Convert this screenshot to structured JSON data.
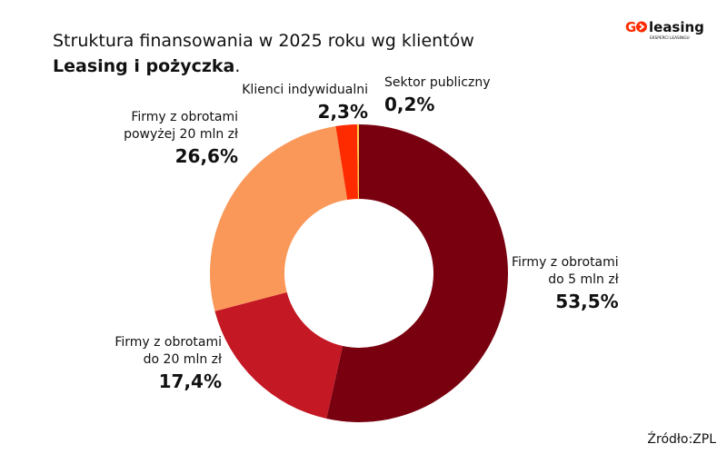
{
  "title": {
    "line1": "Struktura finansowania w 2025 roku wg klientów",
    "line2_bold": "Leasing i pożyczka",
    "line2_suffix": "."
  },
  "logo": {
    "text_go": "GO",
    "text_leasing": "leasing",
    "tagline": "EKSPERCI LEASINGU"
  },
  "source": "Źródło:ZPL",
  "chart_data": {
    "type": "pie",
    "donut": true,
    "categories": [
      "Firmy z obrotami do 5 mln zł",
      "Firmy z obrotami do 20 mln zł",
      "Firmy z obrotami powyżej 20 mln zł",
      "Klienci indywidualni",
      "Sektor publiczny"
    ],
    "values": [
      53.5,
      17.4,
      26.6,
      2.3,
      0.2
    ],
    "value_labels": [
      "53,5%",
      "17,4%",
      "26,6%",
      "2,3%",
      "0,2%"
    ],
    "colors": [
      "#78000f",
      "#c41824",
      "#fa985a",
      "#ff2b00",
      "#ffcf4a"
    ],
    "label_lines": [
      [
        "Firmy z obrotami",
        "do 5 mln zł"
      ],
      [
        "Firmy z obrotami",
        "do 20 mln zł"
      ],
      [
        "Firmy z obrotami",
        "powyżej 20 mln zł"
      ],
      [
        "Klienci indywidualni"
      ],
      [
        "Sektor publiczny"
      ]
    ]
  }
}
